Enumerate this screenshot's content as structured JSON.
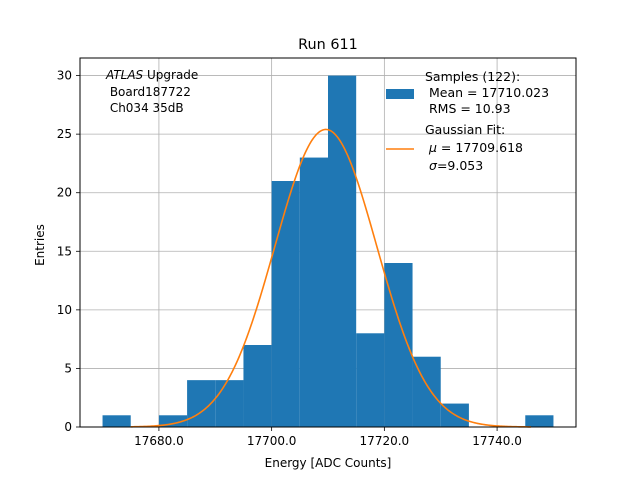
{
  "chart_data": {
    "type": "bar",
    "title": "Run 611",
    "xlabel": "Energy [ADC Counts]",
    "ylabel": "Entries",
    "xlim": [
      17666.0,
      17754.0
    ],
    "ylim": [
      0,
      31.5
    ],
    "grid": true,
    "bin_width": 5,
    "bins": [
      {
        "x0": 17670,
        "x1": 17675,
        "count": 1
      },
      {
        "x0": 17675,
        "x1": 17680,
        "count": 0
      },
      {
        "x0": 17680,
        "x1": 17685,
        "count": 1
      },
      {
        "x0": 17685,
        "x1": 17690,
        "count": 4
      },
      {
        "x0": 17690,
        "x1": 17695,
        "count": 4
      },
      {
        "x0": 17695,
        "x1": 17700,
        "count": 7
      },
      {
        "x0": 17700,
        "x1": 17705,
        "count": 21
      },
      {
        "x0": 17705,
        "x1": 17710,
        "count": 23
      },
      {
        "x0": 17710,
        "x1": 17715,
        "count": 30
      },
      {
        "x0": 17715,
        "x1": 17720,
        "count": 8
      },
      {
        "x0": 17720,
        "x1": 17725,
        "count": 14
      },
      {
        "x0": 17725,
        "x1": 17730,
        "count": 6
      },
      {
        "x0": 17730,
        "x1": 17735,
        "count": 2
      },
      {
        "x0": 17735,
        "x1": 17740,
        "count": 0
      },
      {
        "x0": 17740,
        "x1": 17745,
        "count": 0
      },
      {
        "x0": 17745,
        "x1": 17750,
        "count": 1
      }
    ],
    "xticks": [
      17680,
      17700,
      17720,
      17740
    ],
    "xtick_labels": [
      "17680.0",
      "17700.0",
      "17720.0",
      "17740.0"
    ],
    "yticks": [
      0,
      5,
      10,
      15,
      20,
      25,
      30
    ],
    "ytick_labels": [
      "0",
      "5",
      "10",
      "15",
      "20",
      "25",
      "30"
    ],
    "gaussian_fit": {
      "mu": 17709.618,
      "sigma": 9.053,
      "amplitude": 25.4,
      "x_range": [
        17675,
        17746
      ]
    },
    "colors": {
      "bars": "#1f77b4",
      "fit": "#ff7f0e",
      "grid": "#b0b0b0"
    },
    "annotation": {
      "line1_italic": "ATLAS",
      "line1_rest": " Upgrade",
      "line2": " Board187722",
      "line3": " Ch034 35dB"
    },
    "legend": {
      "placement": "top-right",
      "samples": {
        "line1": "Samples (122):",
        "line2": " Mean = 17710.023",
        "line3": " RMS = 10.93"
      },
      "fit": {
        "line1": "Gaussian Fit:",
        "line2_sym": "μ",
        "line2_rest": " = 17709.618",
        "line3_sym": "σ",
        "line3_rest": "=9.053"
      }
    }
  }
}
